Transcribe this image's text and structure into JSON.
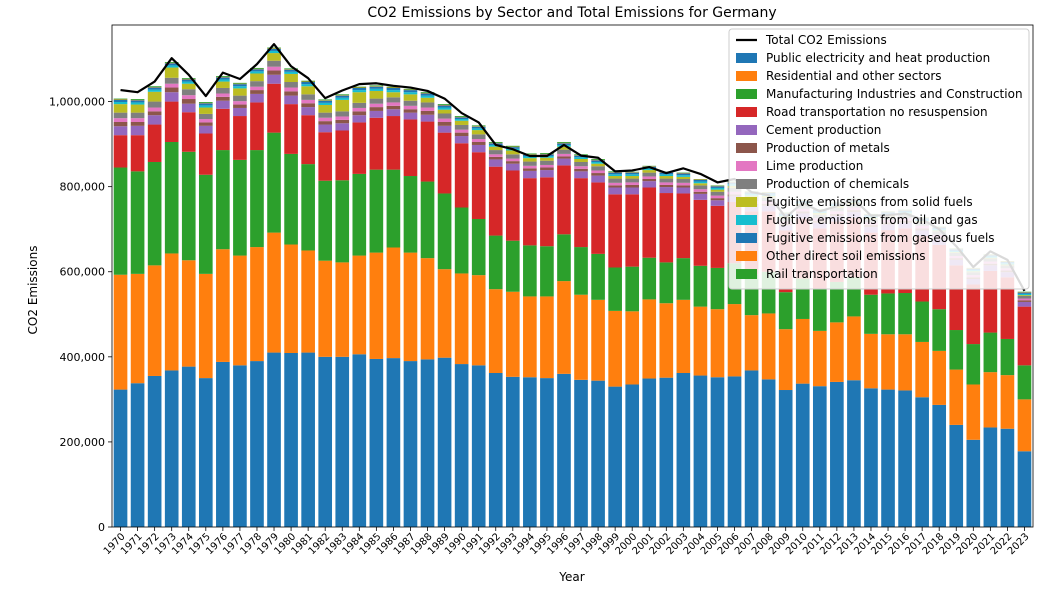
{
  "chart_data": {
    "type": "bar",
    "stacked": true,
    "title": "CO2 Emissions by Sector and Total Emissions for Germany",
    "xlabel": "Year",
    "ylabel": "CO2 Emissions",
    "ylim": [
      0,
      1180000
    ],
    "yticks": [
      0,
      200000,
      400000,
      600000,
      800000,
      1000000
    ],
    "ytick_labels": [
      "0",
      "200,000",
      "400,000",
      "600,000",
      "800,000",
      "1,000,000"
    ],
    "grid": false,
    "legend_position": "top-right",
    "categories": [
      "1970",
      "1971",
      "1972",
      "1973",
      "1974",
      "1975",
      "1976",
      "1977",
      "1978",
      "1979",
      "1980",
      "1981",
      "1982",
      "1983",
      "1984",
      "1985",
      "1986",
      "1987",
      "1988",
      "1989",
      "1990",
      "1991",
      "1992",
      "1993",
      "1994",
      "1995",
      "1996",
      "1997",
      "1998",
      "1999",
      "2000",
      "2001",
      "2002",
      "2003",
      "2004",
      "2005",
      "2006",
      "2007",
      "2008",
      "2009",
      "2010",
      "2011",
      "2012",
      "2013",
      "2014",
      "2015",
      "2016",
      "2017",
      "2018",
      "2019",
      "2020",
      "2021",
      "2022",
      "2023"
    ],
    "total_series": {
      "name": "Total CO2 Emissions",
      "color": "#000000",
      "values": [
        1027000,
        1022000,
        1047000,
        1102000,
        1063000,
        1013000,
        1068000,
        1053000,
        1088000,
        1135000,
        1083000,
        1055000,
        1008000,
        1026000,
        1041000,
        1043000,
        1037000,
        1033000,
        1025000,
        1007000,
        973000,
        951000,
        898000,
        888000,
        872000,
        872000,
        898000,
        873000,
        868000,
        836000,
        838000,
        846000,
        832000,
        843000,
        830000,
        810000,
        818000,
        787000,
        780000,
        728000,
        762000,
        742000,
        754000,
        770000,
        732000,
        733000,
        737000,
        723000,
        700000,
        660000,
        611000,
        648000,
        628000,
        555000
      ]
    },
    "series": [
      {
        "name": "Public electricity and heat production",
        "color": "#1f77b4",
        "values": [
          323000,
          338000,
          355000,
          368000,
          377000,
          350000,
          388000,
          380000,
          390000,
          410000,
          409000,
          410000,
          400000,
          400000,
          406000,
          395000,
          397000,
          390000,
          394000,
          398000,
          383000,
          380000,
          362000,
          353000,
          352000,
          350000,
          360000,
          346000,
          344000,
          330000,
          335000,
          349000,
          351000,
          362000,
          356000,
          352000,
          354000,
          368000,
          347000,
          322000,
          337000,
          331000,
          341000,
          345000,
          326000,
          323000,
          321000,
          305000,
          287000,
          240000,
          205000,
          234000,
          231000,
          178000
        ]
      },
      {
        "name": "Residential and other sectors",
        "color": "#ff7f0e",
        "values": [
          270000,
          257000,
          260000,
          275000,
          250000,
          245000,
          265000,
          258000,
          268000,
          282000,
          255000,
          240000,
          226000,
          222000,
          232000,
          250000,
          260000,
          255000,
          238000,
          208000,
          213000,
          212000,
          197000,
          200000,
          190000,
          192000,
          218000,
          200000,
          190000,
          178000,
          172000,
          186000,
          175000,
          172000,
          162000,
          160000,
          170000,
          130000,
          155000,
          143000,
          152000,
          130000,
          140000,
          150000,
          128000,
          130000,
          132000,
          130000,
          127000,
          130000,
          130000,
          130000,
          126000,
          122000
        ]
      },
      {
        "name": "Manufacturing Industries and Construction",
        "color": "#2ca02c",
        "values": [
          252000,
          241000,
          243000,
          262000,
          255000,
          233000,
          233000,
          225000,
          228000,
          235000,
          213000,
          203000,
          188000,
          193000,
          192000,
          195000,
          183000,
          180000,
          180000,
          178000,
          155000,
          132000,
          126000,
          120000,
          120000,
          118000,
          110000,
          112000,
          108000,
          102000,
          105000,
          98000,
          96000,
          98000,
          96000,
          97000,
          96000,
          96000,
          98000,
          87000,
          95000,
          98000,
          95000,
          92000,
          92000,
          96000,
          97000,
          95000,
          98000,
          93000,
          95000,
          93000,
          85000,
          80000
        ]
      },
      {
        "name": "Road transportation no resuspension",
        "color": "#d62728",
        "values": [
          76000,
          85000,
          88000,
          95000,
          93000,
          97000,
          97000,
          103000,
          112000,
          115000,
          117000,
          115000,
          114000,
          117000,
          121000,
          122000,
          126000,
          133000,
          141000,
          143000,
          151000,
          157000,
          162000,
          165000,
          158000,
          162000,
          162000,
          162000,
          168000,
          172000,
          170000,
          165000,
          163000,
          152000,
          155000,
          146000,
          144000,
          148000,
          142000,
          145000,
          141000,
          143000,
          142000,
          140000,
          146000,
          149000,
          152000,
          154000,
          151000,
          152000,
          140000,
          145000,
          145000,
          138000
        ]
      },
      {
        "name": "Cement production",
        "color": "#9467bd",
        "values": [
          21000,
          22000,
          22000,
          22000,
          20000,
          18000,
          19000,
          19000,
          20000,
          21000,
          20000,
          19000,
          18000,
          17000,
          17000,
          16000,
          16000,
          16000,
          16000,
          16000,
          17000,
          17000,
          17000,
          16000,
          17000,
          17000,
          16000,
          16000,
          16000,
          16000,
          16000,
          15000,
          14000,
          14000,
          14000,
          13000,
          13000,
          13000,
          13000,
          12000,
          12000,
          13000,
          13000,
          13000,
          13000,
          13000,
          13000,
          13000,
          13000,
          13000,
          13000,
          13000,
          12000,
          11000
        ]
      },
      {
        "name": "Production of metals",
        "color": "#8c564b",
        "values": [
          10000,
          9000,
          9000,
          11000,
          11000,
          8000,
          9000,
          8000,
          9000,
          10000,
          10000,
          9000,
          8000,
          8000,
          9000,
          9000,
          8000,
          8000,
          9000,
          9000,
          8000,
          7000,
          6000,
          6000,
          6000,
          6000,
          5000,
          6000,
          6000,
          5000,
          6000,
          5000,
          5000,
          5000,
          5000,
          5000,
          5000,
          5000,
          5000,
          4000,
          5000,
          5000,
          5000,
          5000,
          5000,
          5000,
          5000,
          5000,
          5000,
          4000,
          4000,
          4000,
          4000,
          4000
        ]
      },
      {
        "name": "Lime production",
        "color": "#e377c2",
        "values": [
          9000,
          9000,
          9000,
          9000,
          9000,
          8000,
          8000,
          8000,
          8000,
          9000,
          9000,
          8000,
          8000,
          8000,
          8000,
          8000,
          8000,
          8000,
          8000,
          8000,
          7000,
          7000,
          6000,
          6000,
          6000,
          6000,
          6000,
          6000,
          6000,
          6000,
          6000,
          6000,
          6000,
          6000,
          6000,
          6000,
          6000,
          6000,
          6000,
          5000,
          6000,
          6000,
          6000,
          6000,
          6000,
          6000,
          6000,
          6000,
          6000,
          5000,
          5000,
          5000,
          5000,
          4000
        ]
      },
      {
        "name": "Production of chemicals",
        "color": "#7f7f7f",
        "values": [
          13000,
          13000,
          14000,
          14000,
          14000,
          12000,
          13000,
          13000,
          13000,
          14000,
          13000,
          13000,
          12000,
          12000,
          12000,
          12000,
          12000,
          12000,
          12000,
          12000,
          11000,
          11000,
          10000,
          10000,
          10000,
          10000,
          10000,
          10000,
          10000,
          10000,
          9000,
          9000,
          9000,
          9000,
          9000,
          9000,
          9000,
          9000,
          8000,
          8000,
          8000,
          8000,
          8000,
          8000,
          8000,
          8000,
          8000,
          8000,
          8000,
          7000,
          7000,
          7000,
          7000,
          6000
        ]
      },
      {
        "name": "Fugitive emissions from solid fuels",
        "color": "#bcbd22",
        "values": [
          20000,
          19000,
          23000,
          24000,
          13000,
          15000,
          15000,
          17000,
          18000,
          18000,
          19000,
          19000,
          18000,
          27000,
          25000,
          18000,
          12000,
          15000,
          11000,
          9000,
          10000,
          10000,
          8000,
          9000,
          8000,
          7000,
          7000,
          7000,
          6000,
          6000,
          6000,
          6000,
          6000,
          5000,
          5000,
          5000,
          5000,
          4000,
          4000,
          4000,
          4000,
          4000,
          4000,
          4000,
          3000,
          3000,
          3000,
          3000,
          2000,
          2000,
          2000,
          2000,
          2000,
          2000
        ]
      },
      {
        "name": "Fugitive emissions from oil and gas",
        "color": "#17becf",
        "values": [
          5000,
          5000,
          5000,
          5000,
          5000,
          5000,
          5000,
          5000,
          5000,
          5000,
          5000,
          5000,
          5000,
          5000,
          5000,
          5000,
          5000,
          5000,
          5000,
          5000,
          4000,
          4000,
          4000,
          4000,
          4000,
          4000,
          4000,
          4000,
          4000,
          4000,
          4000,
          4000,
          4000,
          4000,
          4000,
          4000,
          4000,
          4000,
          3000,
          3000,
          3000,
          3000,
          3000,
          3000,
          3000,
          3000,
          3000,
          3000,
          3000,
          3000,
          3000,
          3000,
          3000,
          3000
        ]
      },
      {
        "name": "Fugitive emissions from gaseous fuels",
        "color": "#1f77b4",
        "values": [
          5000,
          5000,
          5000,
          5000,
          5000,
          5000,
          5000,
          5000,
          5000,
          5000,
          5000,
          5000,
          5000,
          5000,
          5000,
          5000,
          5000,
          5000,
          5000,
          5000,
          4000,
          4000,
          4000,
          4000,
          4000,
          4000,
          4000,
          4000,
          4000,
          4000,
          4000,
          4000,
          4000,
          4000,
          4000,
          4000,
          4000,
          4000,
          4000,
          4000,
          4000,
          4000,
          4000,
          4000,
          4000,
          4000,
          4000,
          4000,
          4000,
          4000,
          3000,
          3000,
          3000,
          3000
        ]
      },
      {
        "name": "Other direct soil emissions",
        "color": "#ff7f0e",
        "values": [
          1000,
          1000,
          1000,
          1000,
          1000,
          1000,
          1000,
          1000,
          1000,
          1000,
          1000,
          1000,
          1000,
          1000,
          1000,
          1000,
          1000,
          1000,
          1000,
          1000,
          1000,
          1000,
          1000,
          1000,
          1000,
          1000,
          1000,
          1000,
          1000,
          1000,
          1000,
          1000,
          1000,
          1000,
          1000,
          1000,
          1000,
          1000,
          1000,
          1000,
          1000,
          1000,
          1000,
          1000,
          1000,
          1000,
          1000,
          1000,
          1000,
          1000,
          1000,
          1000,
          1000,
          1000
        ]
      },
      {
        "name": "Rail transportation",
        "color": "#2ca02c",
        "values": [
          2000,
          2000,
          2000,
          2000,
          2000,
          2000,
          2000,
          2000,
          2000,
          2000,
          2000,
          2000,
          2000,
          2000,
          2000,
          2000,
          2000,
          2000,
          2000,
          2000,
          2000,
          2000,
          2000,
          2000,
          2000,
          2000,
          2000,
          2000,
          2000,
          2000,
          1000,
          1000,
          1000,
          1000,
          1000,
          1000,
          1000,
          1000,
          1000,
          1000,
          1000,
          1000,
          1000,
          1000,
          1000,
          1000,
          1000,
          1000,
          1000,
          1000,
          1000,
          1000,
          1000,
          1000
        ]
      }
    ]
  }
}
